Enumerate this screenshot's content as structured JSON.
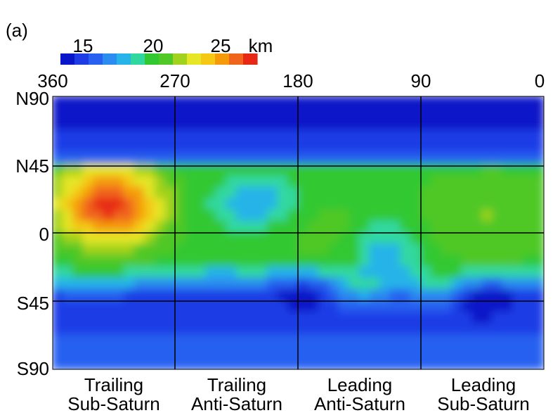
{
  "chart_data": {
    "type": "heatmap",
    "panel_label": "(a)",
    "colorbar": {
      "ticks": [
        "15",
        "20",
        "25"
      ],
      "unit": "km",
      "min": 13,
      "max": 27,
      "steps": 14,
      "colors": [
        "#0a14c8",
        "#1e3ce6",
        "#2860f0",
        "#2c8cf0",
        "#28b4e8",
        "#30d8a0",
        "#32c832",
        "#50c828",
        "#a0d21e",
        "#e6e628",
        "#f5c814",
        "#f59b0a",
        "#f0641e",
        "#e62814"
      ]
    },
    "x_axis": {
      "ticks": [
        "360",
        "270",
        "180",
        "90",
        "0"
      ],
      "range": [
        360,
        0
      ]
    },
    "y_axis": {
      "ticks": [
        "N90",
        "N45",
        "0",
        "S45",
        "S90"
      ],
      "range": [
        90,
        -90
      ]
    },
    "regions": [
      {
        "line1": "Trailing",
        "line2": "Sub-Saturn"
      },
      {
        "line1": "Trailing",
        "line2": "Anti-Saturn"
      },
      {
        "line1": "Leading",
        "line2": "Anti-Saturn"
      },
      {
        "line1": "Leading",
        "line2": "Sub-Saturn"
      }
    ],
    "thickness_regions": [
      {
        "desc": "polar_north",
        "value": 14.0
      },
      {
        "desc": "band_north_mid",
        "value": 16.5
      },
      {
        "desc": "trailing_subsaturn_max",
        "value": 26.5,
        "lon": 315,
        "lat": 20
      },
      {
        "desc": "anti_saturn_belt",
        "value": 20.0
      },
      {
        "desc": "south_trailing_low",
        "value": 14.5
      },
      {
        "desc": "leading_subsaturn_low",
        "value": 14.0,
        "lon": 45,
        "lat": -40
      },
      {
        "desc": "polar_south",
        "value": 14.5
      }
    ]
  }
}
